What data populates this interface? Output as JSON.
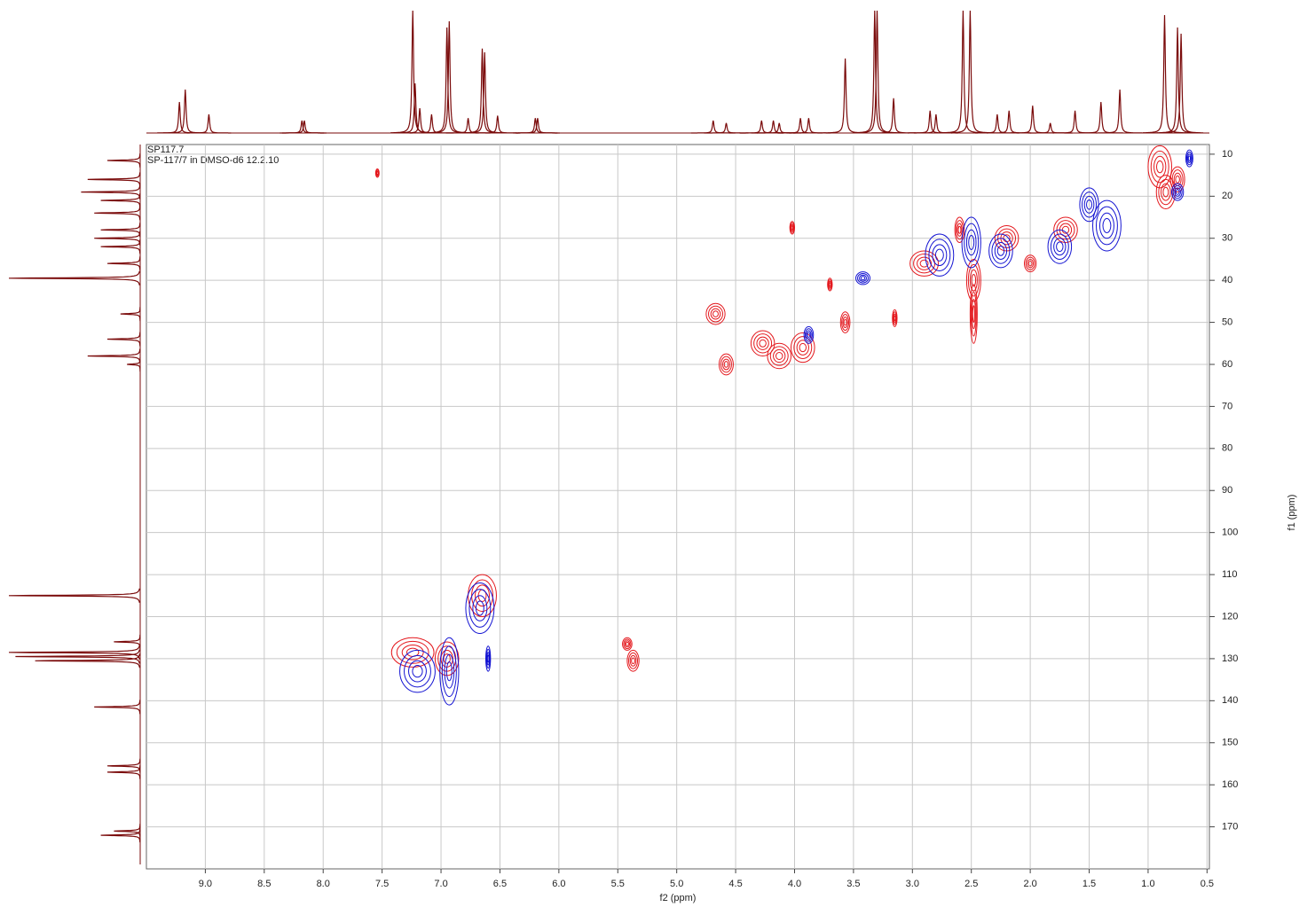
{
  "chart_data": {
    "type": "contour",
    "title": "SP117.7",
    "subtitle": "SP-117/7 in DMSO-d6  12.2.10",
    "x_label": "f2 (ppm)",
    "y_label": "f1 (ppm)",
    "xlim": [
      9.5,
      0.48
    ],
    "ylim": [
      7.7,
      180
    ],
    "xticks": [
      {
        "value": 9,
        "label": "9.0"
      },
      8.5,
      {
        "value": 8,
        "label": "8.0"
      },
      7.5,
      {
        "value": 7,
        "label": "7.0"
      },
      6.5,
      {
        "value": 6,
        "label": "6.0"
      },
      5.5,
      {
        "value": 5,
        "label": "5.0"
      },
      4.5,
      {
        "value": 4,
        "label": "4.0"
      },
      3.5,
      {
        "value": 3,
        "label": "3.0"
      },
      2.5,
      {
        "value": 2,
        "label": "2.0"
      },
      1.5,
      {
        "value": 1,
        "label": "1.0"
      },
      0.5
    ],
    "yticks": [
      10,
      20,
      30,
      40,
      50,
      60,
      70,
      80,
      90,
      100,
      110,
      120,
      130,
      140,
      150,
      160,
      170
    ],
    "grid": true,
    "series": [
      {
        "name": "positive",
        "color": "#e4191e",
        "x": [
          7.54,
          0.85,
          0.75,
          0.9,
          2.6,
          2.48,
          2.48,
          2.2,
          1.7,
          4.67,
          4.58,
          4.27,
          4.13,
          3.93,
          3.57,
          3.15,
          4.02,
          3.7,
          7.24,
          6.95,
          6.65,
          5.37,
          5.42,
          2.9,
          2.0
        ],
        "values": [
          14.5,
          19,
          16,
          13,
          28,
          40,
          48,
          30,
          28,
          48,
          60,
          55,
          58,
          56,
          50,
          49,
          27.5,
          41,
          128.5,
          130,
          115,
          130.5,
          126.5,
          36,
          36
        ],
        "w": [
          0.015,
          0.08,
          0.06,
          0.1,
          0.04,
          0.06,
          0.03,
          0.1,
          0.1,
          0.08,
          0.06,
          0.1,
          0.1,
          0.1,
          0.04,
          0.02,
          0.02,
          0.02,
          0.18,
          0.1,
          0.12,
          0.05,
          0.04,
          0.12,
          0.05
        ],
        "h": [
          1,
          4,
          3,
          5,
          3,
          5,
          7,
          3,
          3,
          2.5,
          2.5,
          3,
          3,
          3.5,
          2.5,
          2,
          1.5,
          1.5,
          3.5,
          4,
          5,
          2.5,
          1.5,
          3,
          2
        ]
      },
      {
        "name": "negative",
        "color": "#1414d2",
        "x": [
          2.5,
          2.77,
          2.25,
          1.75,
          1.35,
          1.5,
          0.65,
          0.75,
          7.2,
          6.93,
          6.67,
          3.42,
          3.88,
          6.6
        ],
        "values": [
          31,
          34,
          33,
          32,
          27,
          22,
          11,
          19,
          133,
          133,
          118,
          39.5,
          53,
          130
        ],
        "w": [
          0.08,
          0.12,
          0.1,
          0.1,
          0.12,
          0.08,
          0.03,
          0.05,
          0.15,
          0.08,
          0.12,
          0.06,
          0.04,
          0.02
        ],
        "h": [
          6,
          5,
          4,
          4,
          6,
          4,
          2,
          2,
          5,
          8,
          6,
          1.5,
          2,
          3
        ]
      }
    ],
    "top_projection": {
      "color": "#7a0a0a",
      "x": [
        9.22,
        9.17,
        8.97,
        8.18,
        8.16,
        7.24,
        7.22,
        7.18,
        7.08,
        6.95,
        6.93,
        6.77,
        6.65,
        6.63,
        6.52,
        6.2,
        6.18,
        4.69,
        4.58,
        4.28,
        4.18,
        4.13,
        3.95,
        3.88,
        3.57,
        3.32,
        3.3,
        3.16,
        2.85,
        2.8,
        2.57,
        2.51,
        2.28,
        2.18,
        1.98,
        1.83,
        1.62,
        1.4,
        1.24,
        0.86,
        0.75,
        0.72
      ],
      "values": [
        25,
        35,
        15,
        10,
        10,
        100,
        40,
        20,
        15,
        85,
        90,
        12,
        68,
        65,
        14,
        12,
        12,
        10,
        8,
        10,
        10,
        8,
        12,
        12,
        60,
        100,
        100,
        28,
        18,
        15,
        100,
        100,
        15,
        18,
        22,
        8,
        18,
        25,
        35,
        95,
        85,
        80
      ]
    },
    "left_projection": {
      "color": "#7a0a0a",
      "y": [
        11.5,
        16,
        19,
        21,
        24,
        28,
        30,
        32,
        36,
        39.5,
        48,
        54,
        58,
        60,
        115,
        126,
        128.5,
        129.5,
        130.5,
        141.5,
        155.5,
        157,
        171,
        172
      ],
      "values": [
        25,
        40,
        45,
        30,
        35,
        30,
        35,
        30,
        25,
        100,
        15,
        25,
        40,
        10,
        100,
        20,
        100,
        95,
        80,
        35,
        25,
        25,
        20,
        30
      ]
    }
  }
}
